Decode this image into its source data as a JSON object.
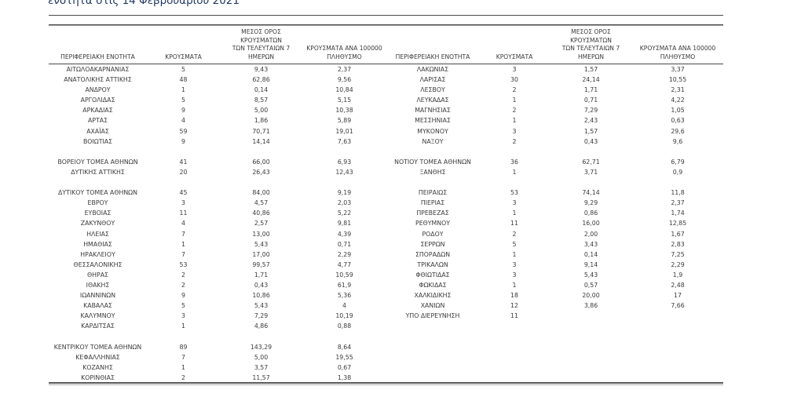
{
  "page": {
    "title_partial": "ενότητα στις 14 Φεβρουαρίου 2021",
    "title_color": "#1f3864",
    "text_color": "#3a3a3a",
    "rule_color": "#4a4a4a"
  },
  "table": {
    "headers": {
      "region": "ΠΕΡΙΦΕΡΕΙΑΚΗ ΕΝΟΤΗΤΑ",
      "cases": "ΚΡΟΥΣΜΑΤΑ",
      "avg7": "ΜΕΣΟΣ ΟΡΟΣ ΚΡΟΥΣΜΑΤΩΝ\nΤΩΝ ΤΕΛΕΥΤΑΙΩΝ 7\nΗΜΕΡΩΝ",
      "per100k": "ΚΡΟΥΣΜΑΤΑ ΑΝΑ 100000\nΠΛΗΘΥΣΜΟ"
    },
    "rows": [
      {
        "left": {
          "region": "ΑΙΤΩΛΟΑΚΑΡΝΑΝΙΑΣ",
          "cases": "5",
          "avg7": "9,43",
          "per100k": "2,37"
        },
        "right": {
          "region": "ΛΑΚΩΝΙΑΣ",
          "cases": "3",
          "avg7": "1,57",
          "per100k": "3,37"
        }
      },
      {
        "left": {
          "region": "ΑΝΑΤΟΛΙΚΗΣ ΑΤΤΙΚΗΣ",
          "cases": "48",
          "avg7": "62,86",
          "per100k": "9,56"
        },
        "right": {
          "region": "ΛΑΡΙΣΑΣ",
          "cases": "30",
          "avg7": "24,14",
          "per100k": "10,55"
        }
      },
      {
        "left": {
          "region": "ΑΝΔΡΟΥ",
          "cases": "1",
          "avg7": "0,14",
          "per100k": "10,84"
        },
        "right": {
          "region": "ΛΕΣΒΟΥ",
          "cases": "2",
          "avg7": "1,71",
          "per100k": "2,31"
        }
      },
      {
        "left": {
          "region": "ΑΡΓΟΛΙΔΑΣ",
          "cases": "5",
          "avg7": "8,57",
          "per100k": "5,15"
        },
        "right": {
          "region": "ΛΕΥΚΑΔΑΣ",
          "cases": "1",
          "avg7": "0,71",
          "per100k": "4,22"
        }
      },
      {
        "left": {
          "region": "ΑΡΚΑΔΙΑΣ",
          "cases": "9",
          "avg7": "5,00",
          "per100k": "10,38"
        },
        "right": {
          "region": "ΜΑΓΝΗΣΙΑΣ",
          "cases": "2",
          "avg7": "7,29",
          "per100k": "1,05"
        }
      },
      {
        "left": {
          "region": "ΑΡΤΑΣ",
          "cases": "4",
          "avg7": "1,86",
          "per100k": "5,89"
        },
        "right": {
          "region": "ΜΕΣΣΗΝΙΑΣ",
          "cases": "1",
          "avg7": "2,43",
          "per100k": "0,63"
        }
      },
      {
        "left": {
          "region": "ΑΧΑΪΑΣ",
          "cases": "59",
          "avg7": "70,71",
          "per100k": "19,01"
        },
        "right": {
          "region": "ΜΥΚΟΝΟΥ",
          "cases": "3",
          "avg7": "1,57",
          "per100k": "29,6"
        }
      },
      {
        "left": {
          "region": "ΒΟΙΩΤΙΑΣ",
          "cases": "9",
          "avg7": "14,14",
          "per100k": "7,63"
        },
        "right": {
          "region": "ΝΑΞΟΥ",
          "cases": "2",
          "avg7": "0,43",
          "per100k": "9,6"
        }
      },
      {
        "left": null,
        "right": null
      },
      {
        "left": {
          "region": "ΒΟΡΕΙΟΥ ΤΟΜΕΑ ΑΘΗΝΩΝ",
          "cases": "41",
          "avg7": "66,00",
          "per100k": "6,93"
        },
        "right": {
          "region": "ΝΟΤΙΟΥ ΤΟΜΕΑ ΑΘΗΝΩΝ",
          "cases": "36",
          "avg7": "62,71",
          "per100k": "6,79"
        }
      },
      {
        "left": {
          "region": "ΔΥΤΙΚΗΣ ΑΤΤΙΚΗΣ",
          "cases": "20",
          "avg7": "26,43",
          "per100k": "12,43"
        },
        "right": {
          "region": "ΞΑΝΘΗΣ",
          "cases": "1",
          "avg7": "3,71",
          "per100k": "0,9"
        }
      },
      {
        "left": null,
        "right": null
      },
      {
        "left": {
          "region": "ΔΥΤΙΚΟΥ ΤΟΜΕΑ ΑΘΗΝΩΝ",
          "cases": "45",
          "avg7": "84,00",
          "per100k": "9,19"
        },
        "right": {
          "region": "ΠΕΙΡΑΙΩΣ",
          "cases": "53",
          "avg7": "74,14",
          "per100k": "11,8"
        }
      },
      {
        "left": {
          "region": "ΕΒΡΟΥ",
          "cases": "3",
          "avg7": "4,57",
          "per100k": "2,03"
        },
        "right": {
          "region": "ΠΙΕΡΙΑΣ",
          "cases": "3",
          "avg7": "9,29",
          "per100k": "2,37"
        }
      },
      {
        "left": {
          "region": "ΕΥΒΟΙΑΣ",
          "cases": "11",
          "avg7": "40,86",
          "per100k": "5,22"
        },
        "right": {
          "region": "ΠΡΕΒΕΖΑΣ",
          "cases": "1",
          "avg7": "0,86",
          "per100k": "1,74"
        }
      },
      {
        "left": {
          "region": "ΖΑΚΥΝΘΟΥ",
          "cases": "4",
          "avg7": "2,57",
          "per100k": "9,81"
        },
        "right": {
          "region": "ΡΕΘΥΜΝΟΥ",
          "cases": "11",
          "avg7": "16,00",
          "per100k": "12,85"
        }
      },
      {
        "left": {
          "region": "ΗΛΕΙΑΣ",
          "cases": "7",
          "avg7": "13,00",
          "per100k": "4,39"
        },
        "right": {
          "region": "ΡΟΔΟΥ",
          "cases": "2",
          "avg7": "2,00",
          "per100k": "1,67"
        }
      },
      {
        "left": {
          "region": "ΗΜΑΘΙΑΣ",
          "cases": "1",
          "avg7": "5,43",
          "per100k": "0,71"
        },
        "right": {
          "region": "ΣΕΡΡΩΝ",
          "cases": "5",
          "avg7": "3,43",
          "per100k": "2,83"
        }
      },
      {
        "left": {
          "region": "ΗΡΑΚΛΕΙΟΥ",
          "cases": "7",
          "avg7": "17,00",
          "per100k": "2,29"
        },
        "right": {
          "region": "ΣΠΟΡΑΔΩΝ",
          "cases": "1",
          "avg7": "0,14",
          "per100k": "7,25"
        }
      },
      {
        "left": {
          "region": "ΘΕΣΣΑΛΟΝΙΚΗΣ",
          "cases": "53",
          "avg7": "99,57",
          "per100k": "4,77"
        },
        "right": {
          "region": "ΤΡΙΚΑΛΩΝ",
          "cases": "3",
          "avg7": "9,14",
          "per100k": "2,29"
        }
      },
      {
        "left": {
          "region": "ΘΗΡΑΣ",
          "cases": "2",
          "avg7": "1,71",
          "per100k": "10,59"
        },
        "right": {
          "region": "ΦΘΙΩΤΙΔΑΣ",
          "cases": "3",
          "avg7": "5,43",
          "per100k": "1,9"
        }
      },
      {
        "left": {
          "region": "ΙΘΑΚΗΣ",
          "cases": "2",
          "avg7": "0,43",
          "per100k": "61,9"
        },
        "right": {
          "region": "ΦΩΚΙΔΑΣ",
          "cases": "1",
          "avg7": "0,57",
          "per100k": "2,48"
        }
      },
      {
        "left": {
          "region": "ΙΩΑΝΝΙΝΩΝ",
          "cases": "9",
          "avg7": "10,86",
          "per100k": "5,36"
        },
        "right": {
          "region": "ΧΑΛΚΙΔΙΚΗΣ",
          "cases": "18",
          "avg7": "20,00",
          "per100k": "17"
        }
      },
      {
        "left": {
          "region": "ΚΑΒΑΛΑΣ",
          "cases": "5",
          "avg7": "5,43",
          "per100k": "4"
        },
        "right": {
          "region": "ΧΑΝΙΩΝ",
          "cases": "12",
          "avg7": "3,86",
          "per100k": "7,66"
        }
      },
      {
        "left": {
          "region": "ΚΑΛΥΜΝΟΥ",
          "cases": "3",
          "avg7": "7,29",
          "per100k": "10,19"
        },
        "right": {
          "region": "ΥΠΟ ΔΙΕΡΕΥΝΗΣΗ",
          "cases": "11",
          "avg7": "",
          "per100k": ""
        }
      },
      {
        "left": {
          "region": "ΚΑΡΔΙΤΣΑΣ",
          "cases": "1",
          "avg7": "4,86",
          "per100k": "0,88"
        },
        "right": null
      },
      {
        "left": null,
        "right": null
      },
      {
        "left": {
          "region": "ΚΕΝΤΡΙΚΟΥ ΤΟΜΕΑ ΑΘΗΝΩΝ",
          "cases": "89",
          "avg7": "143,29",
          "per100k": "8,64"
        },
        "right": null
      },
      {
        "left": {
          "region": "ΚΕΦΑΛΛΗΝΙΑΣ",
          "cases": "7",
          "avg7": "5,00",
          "per100k": "19,55"
        },
        "right": null
      },
      {
        "left": {
          "region": "ΚΟΖΑΝΗΣ",
          "cases": "1",
          "avg7": "3,57",
          "per100k": "0,67"
        },
        "right": null
      },
      {
        "left": {
          "region": "ΚΟΡΙΝΘΙΑΣ",
          "cases": "2",
          "avg7": "11,57",
          "per100k": "1,38"
        },
        "right": null
      }
    ]
  }
}
